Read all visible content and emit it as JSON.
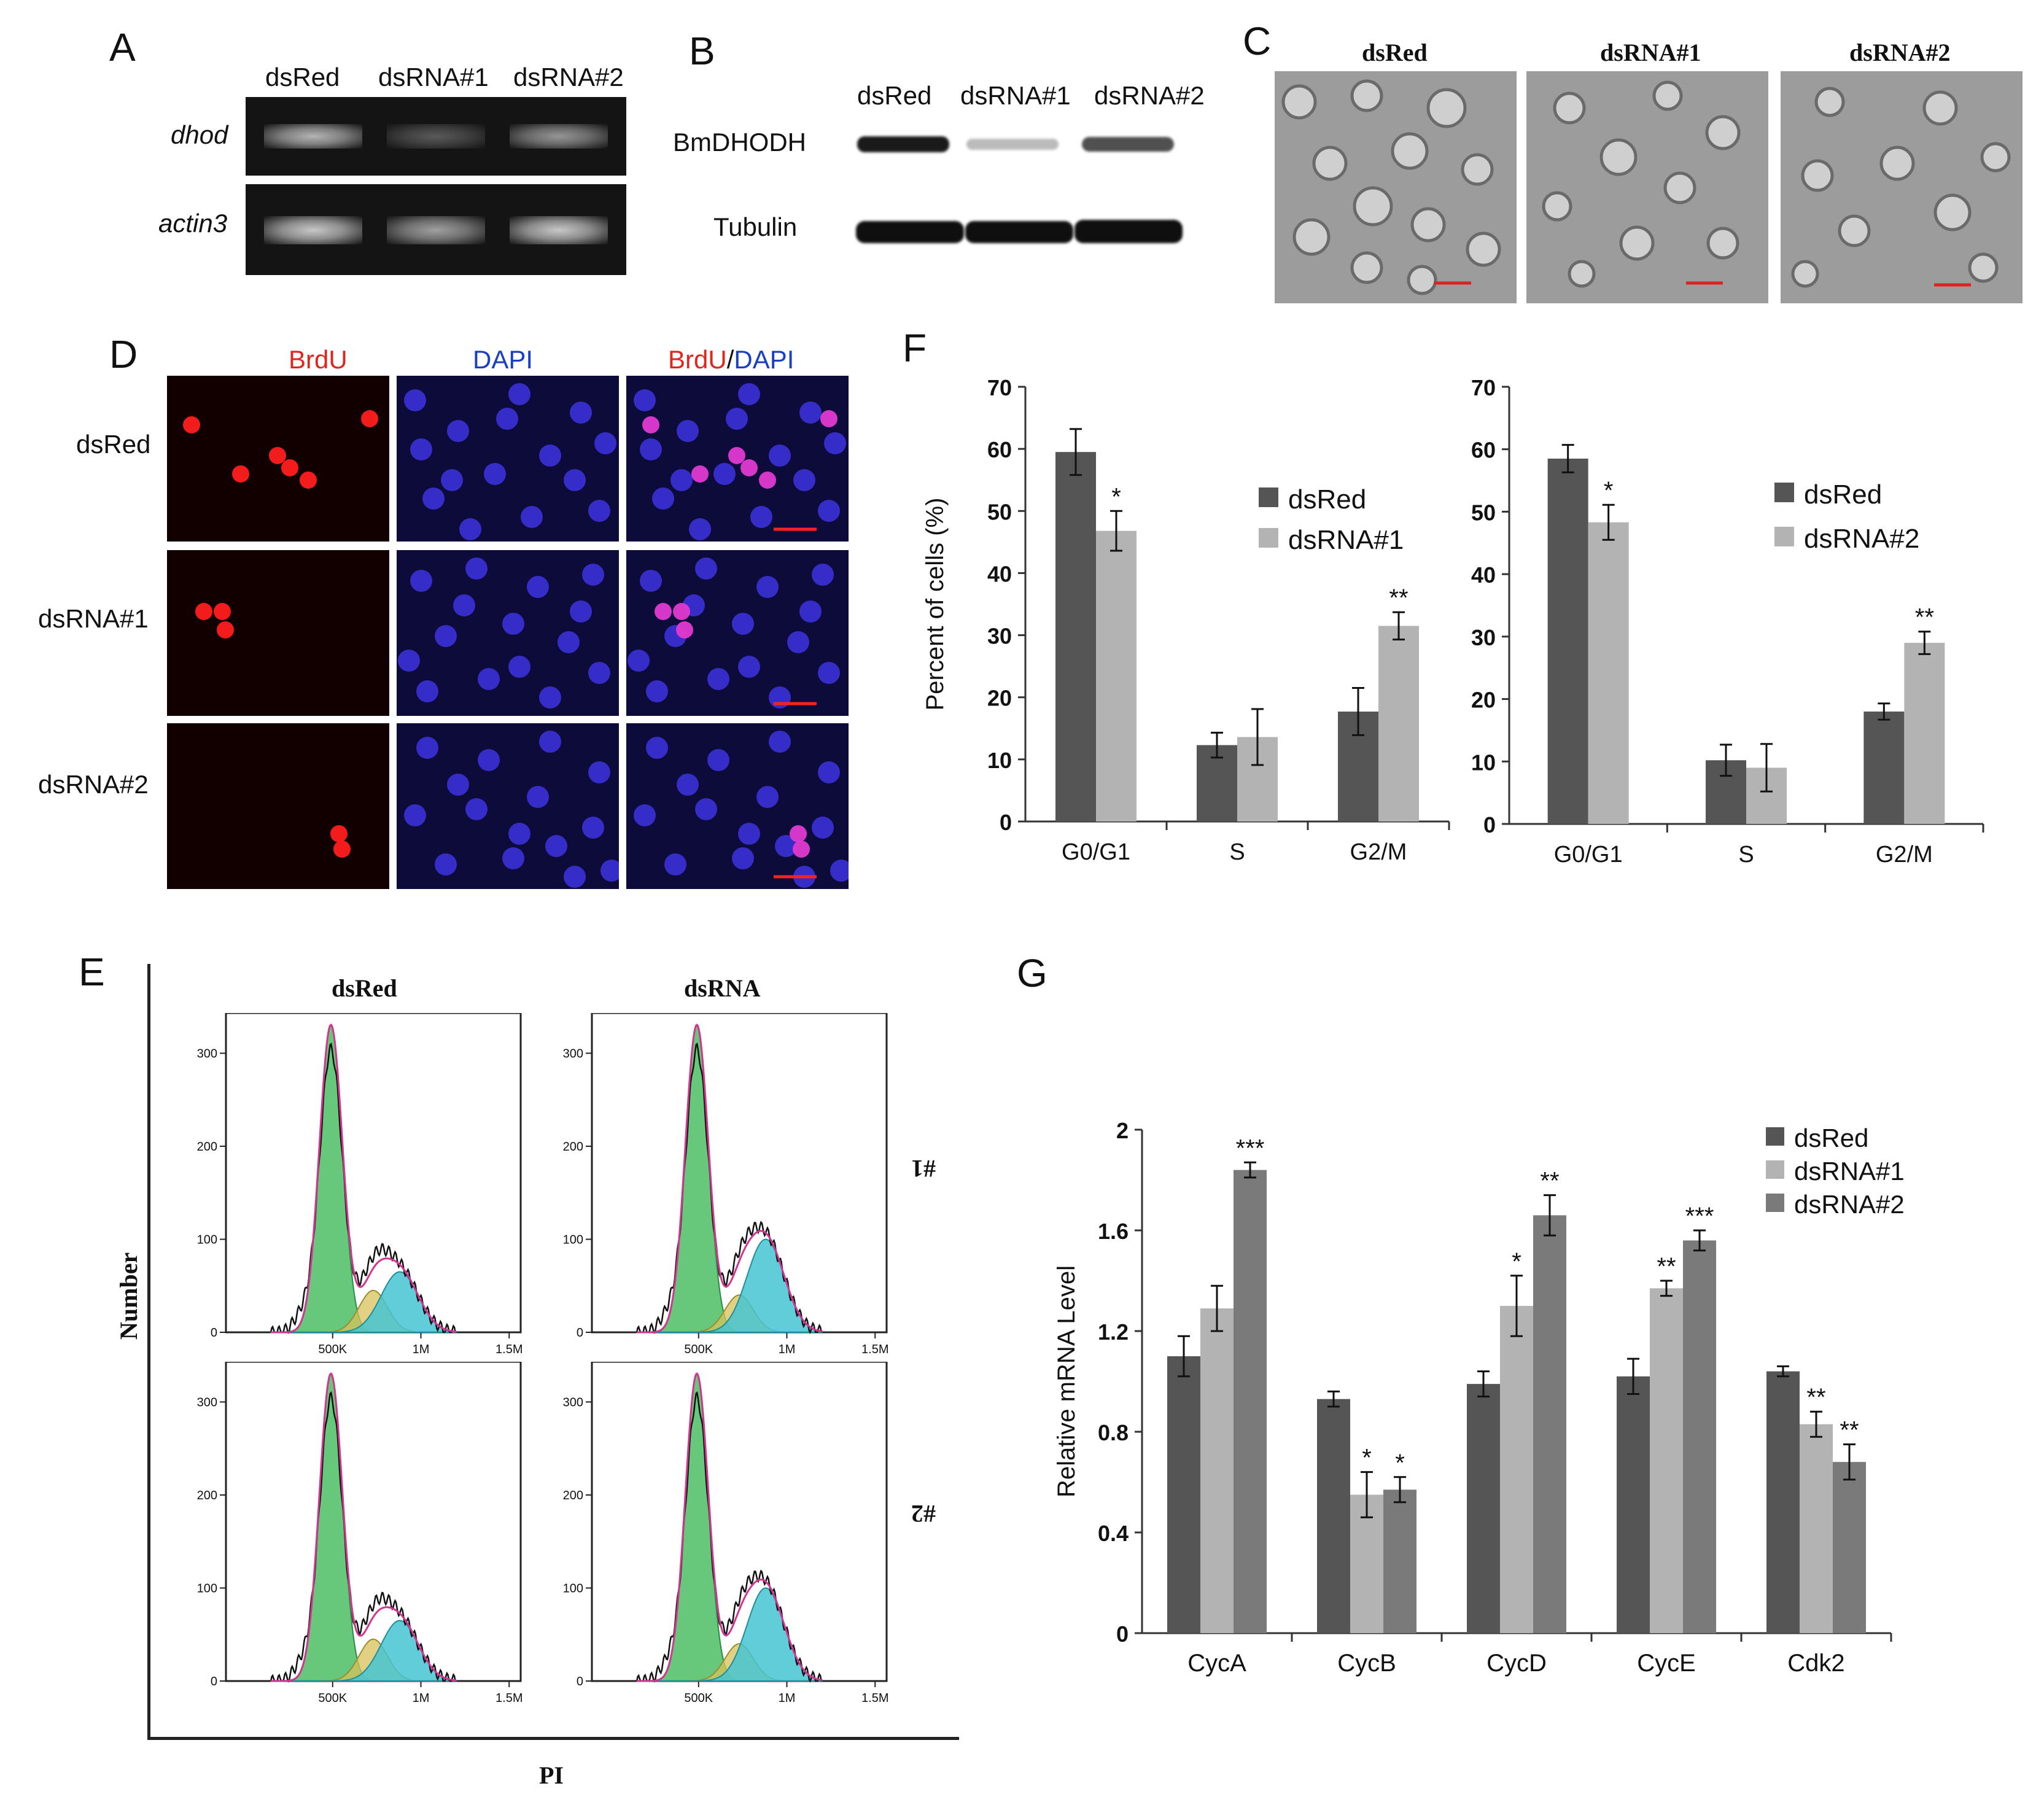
{
  "panels": {
    "A": "A",
    "B": "B",
    "C": "C",
    "D": "D",
    "E": "E",
    "F": "F",
    "G": "G"
  },
  "panelA": {
    "lanes": [
      "dsRed",
      "dsRNA#1",
      "dsRNA#2"
    ],
    "genes": [
      "dhod",
      "actin3"
    ],
    "band_intensity": {
      "dhod": [
        0.75,
        0.3,
        0.6
      ],
      "actin3": [
        0.85,
        0.65,
        0.85
      ]
    }
  },
  "panelB": {
    "lanes": [
      "dsRed",
      "dsRNA#1",
      "dsRNA#2"
    ],
    "proteins": [
      "BmDHODH",
      "Tubulin"
    ],
    "band_intensity": {
      "BmDHODH": [
        0.95,
        0.2,
        0.7
      ],
      "Tubulin": [
        1.0,
        1.0,
        1.0
      ]
    }
  },
  "panelC": {
    "titles": [
      "dsRed",
      "dsRNA#1",
      "dsRNA#2"
    ]
  },
  "panelD": {
    "col_brdu": "BrdU",
    "col_dapi": "DAPI",
    "merge_a": "BrdU",
    "merge_sep": "/",
    "merge_b": "DAPI",
    "rows": [
      "dsRed",
      "dsRNA#1",
      "dsRNA#2"
    ]
  },
  "panelE": {
    "titles": [
      "dsRed",
      "dsRNA"
    ],
    "row_labels": [
      "#1",
      "#2"
    ],
    "ylabel": "Number",
    "xlabel": "PI",
    "yticks": [
      "300",
      "200",
      "100",
      "0"
    ],
    "xticks": [
      "500K",
      "1M",
      "1.5M"
    ]
  },
  "chart_data": [
    {
      "type": "bar",
      "categories": [
        "G0/G1",
        "S",
        "G2/M"
      ],
      "series": [
        {
          "name": "dsRed",
          "values": [
            59.5,
            12.3,
            17.7
          ],
          "errors": [
            3.7,
            2.0,
            3.8
          ]
        },
        {
          "name": "dsRNA#1",
          "values": [
            46.8,
            13.6,
            31.5
          ],
          "errors": [
            3.2,
            4.5,
            2.2
          ]
        }
      ],
      "significance": [
        "*",
        "",
        "**"
      ],
      "ylabel": "Percent of cells (%)",
      "ylim": [
        0,
        70
      ],
      "yticks": [
        "0",
        "10",
        "20",
        "30",
        "40",
        "50",
        "60",
        "70"
      ],
      "legend": "top-right",
      "colors": [
        "#555555",
        "#b3b3b3"
      ]
    },
    {
      "type": "bar",
      "categories": [
        "G0/G1",
        "S",
        "G2/M"
      ],
      "series": [
        {
          "name": "dsRed",
          "values": [
            58.5,
            10.2,
            18.0
          ],
          "errors": [
            2.2,
            2.5,
            1.3
          ]
        },
        {
          "name": "dsRNA#2",
          "values": [
            48.3,
            9.0,
            29.0
          ],
          "errors": [
            2.8,
            3.8,
            1.8
          ]
        }
      ],
      "significance": [
        "*",
        "",
        "**"
      ],
      "ylim": [
        0,
        70
      ],
      "yticks": [
        "0",
        "10",
        "20",
        "30",
        "40",
        "50",
        "60",
        "70"
      ],
      "legend": "top-right",
      "colors": [
        "#555555",
        "#b3b3b3"
      ]
    },
    {
      "type": "bar",
      "categories": [
        "CycA",
        "CycB",
        "CycD",
        "CycE",
        "Cdk2"
      ],
      "series": [
        {
          "name": "dsRed",
          "values": [
            1.1,
            0.93,
            0.99,
            1.02,
            1.04
          ],
          "errors": [
            0.08,
            0.03,
            0.05,
            0.07,
            0.02
          ]
        },
        {
          "name": "dsRNA#1",
          "values": [
            1.29,
            0.55,
            1.3,
            1.37,
            0.83
          ],
          "errors": [
            0.09,
            0.09,
            0.12,
            0.03,
            0.05
          ]
        },
        {
          "name": "dsRNA#2",
          "values": [
            1.84,
            0.57,
            1.66,
            1.56,
            0.68
          ],
          "errors": [
            0.03,
            0.05,
            0.08,
            0.04,
            0.07
          ]
        }
      ],
      "significance": [
        [
          "",
          "",
          "***"
        ],
        [
          "",
          "*",
          "*"
        ],
        [
          "",
          "*",
          "**"
        ],
        [
          "",
          "**",
          "***"
        ],
        [
          "",
          "**",
          "**"
        ]
      ],
      "ylabel": "Relative mRNA Level",
      "ylim": [
        0,
        2
      ],
      "yticks": [
        "0",
        "0.4",
        "0.8",
        "1.2",
        "1.6",
        "2"
      ],
      "legend": "top-right",
      "colors": [
        "#555555",
        "#b3b3b3",
        "#7a7a7a"
      ]
    }
  ]
}
